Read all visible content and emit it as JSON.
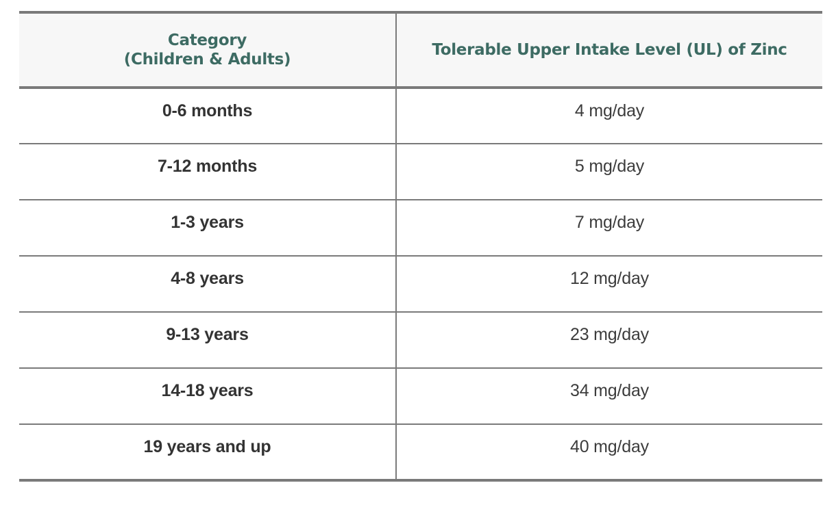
{
  "table": {
    "header": {
      "category_line1": "Category",
      "category_line2": "(Children & Adults)",
      "ul": "Tolerable Upper Intake Level (UL) of Zinc"
    },
    "rows": [
      {
        "category": "0-6 months",
        "ul": "4 mg/day"
      },
      {
        "category": "7-12 months",
        "ul": "5 mg/day"
      },
      {
        "category": "1-3 years",
        "ul": "7 mg/day"
      },
      {
        "category": "4-8 years",
        "ul": "12 mg/day"
      },
      {
        "category": "9-13 years",
        "ul": "23 mg/day"
      },
      {
        "category": "14-18 years",
        "ul": "34 mg/day"
      },
      {
        "category": "19 years and up",
        "ul": "40 mg/day"
      }
    ]
  },
  "colors": {
    "header_text": "#3d6b63",
    "header_bg": "#f7f7f7",
    "border": "#7a7a7a",
    "body_text": "#333333"
  }
}
